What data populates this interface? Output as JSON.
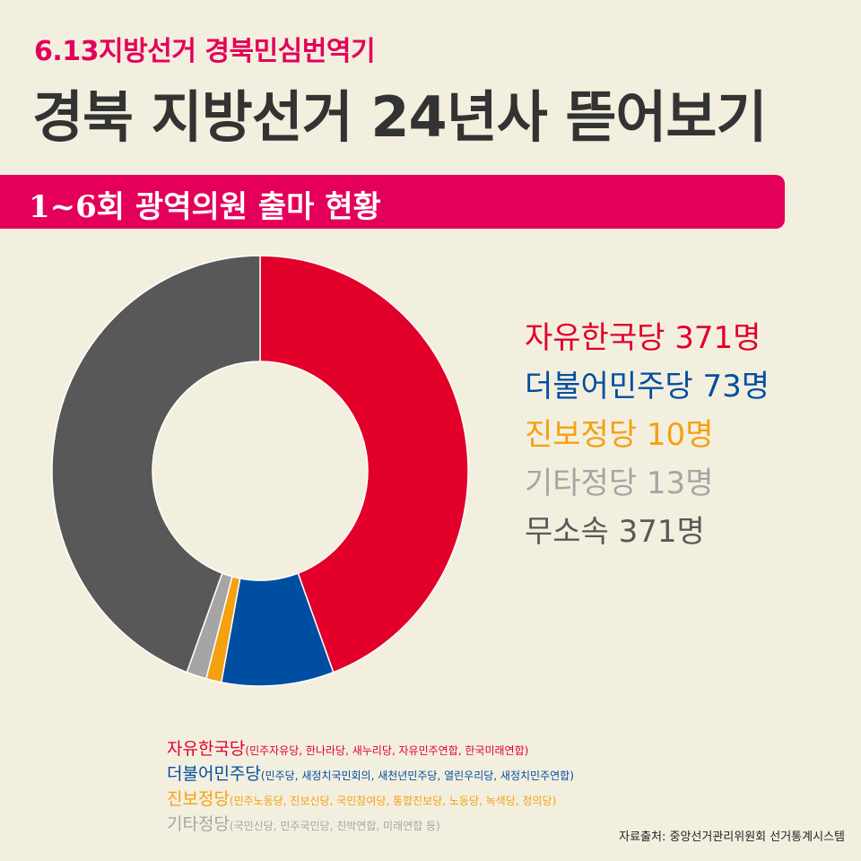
{
  "header": {
    "subtitle": "6.13지방선거 경북민심번역기",
    "title": "경북 지방선거 24년사 뜯어보기"
  },
  "banner": {
    "text": "1~6회 광역의원 출마 현황"
  },
  "chart_data": {
    "type": "pie",
    "donut": true,
    "start": "top",
    "direction": "clockwise",
    "legend_placement": "right",
    "categories": [
      "자유한국당",
      "더불어민주당",
      "진보정당",
      "기타정당",
      "무소속"
    ],
    "values": [
      371,
      73,
      10,
      13,
      371
    ],
    "colors": [
      "#e2002a",
      "#004ea2",
      "#f5a00f",
      "#a5a5a5",
      "#585858"
    ],
    "labels": [
      "자유한국당 371명",
      "더불어민주당 73명",
      "진보정당 10명",
      "기타정당 13명",
      "무소속 371명"
    ]
  },
  "notes": [
    {
      "name": "자유한국당",
      "detail": "(민주자유당, 한나라당, 새누리당, 자유민주연합, 한국미래연합)",
      "color": "#e2002a"
    },
    {
      "name": "더불어민주당",
      "detail": "(민주당, 새정치국민회의, 새천년민주당, 열린우리당, 새정치민주연합)",
      "color": "#004ea2"
    },
    {
      "name": "진보정당",
      "detail": "(민주노동당, 진보신당, 국민참여당, 통합진보당, 노동당, 녹색당, 정의당)",
      "color": "#f5a00f"
    },
    {
      "name": "기타정당",
      "detail": "(국민신당, 민주국민당, 친박연합, 미래연합 등)",
      "color": "#a5a5a5"
    }
  ],
  "footer": {
    "source": "자료출처: 중앙선거관리위원회 선거통계시스템"
  }
}
